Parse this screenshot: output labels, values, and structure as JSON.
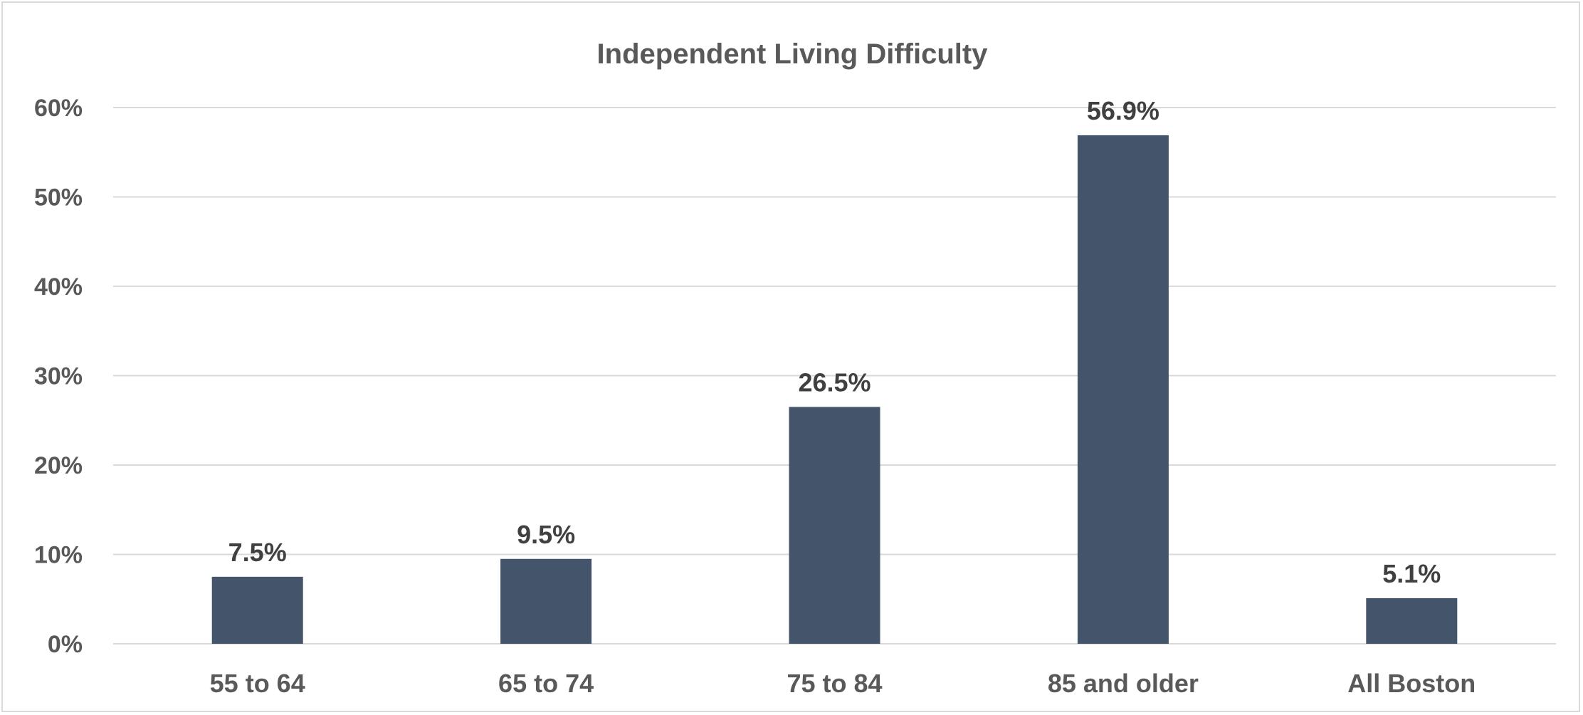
{
  "chart_data": {
    "type": "bar",
    "title": "Independent Living Difficulty",
    "xlabel": "",
    "ylabel": "",
    "categories": [
      "55 to 64",
      "65 to 74",
      "75 to 84",
      "85 and older",
      "All Boston"
    ],
    "values": [
      7.5,
      9.5,
      26.5,
      56.9,
      5.1
    ],
    "data_labels": [
      "7.5%",
      "9.5%",
      "26.5%",
      "56.9%",
      "5.1%"
    ],
    "ylim": [
      0,
      60
    ],
    "yticks": [
      0,
      10,
      20,
      30,
      40,
      50,
      60
    ],
    "ytick_labels": [
      "0%",
      "10%",
      "20%",
      "30%",
      "40%",
      "50%",
      "60%"
    ],
    "grid": true,
    "legend": "none",
    "colors": {
      "bar": "#44546a",
      "grid": "#d9d9d9",
      "text": "#595959",
      "data_label": "#404040"
    }
  }
}
